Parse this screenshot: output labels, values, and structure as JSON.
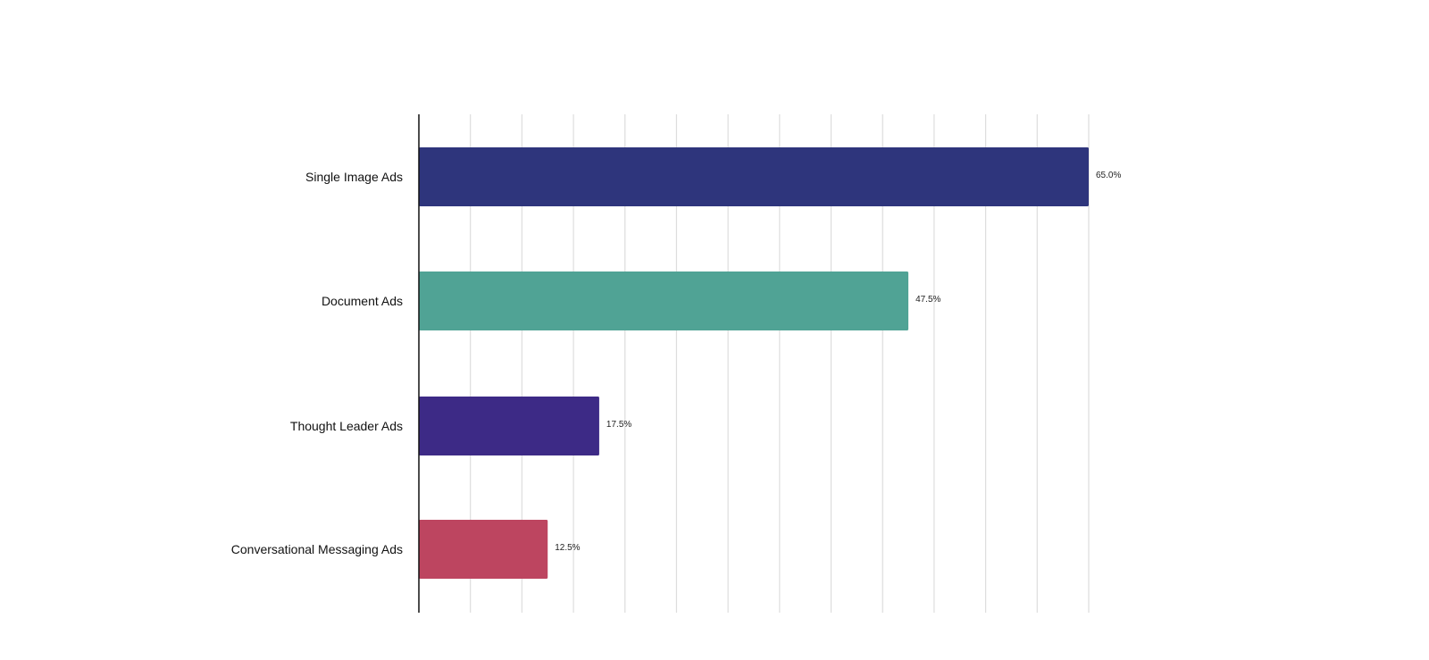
{
  "chart_data": {
    "type": "bar",
    "orientation": "horizontal",
    "categories": [
      "Single Image Ads",
      "Document Ads",
      "Thought Leader Ads",
      "Conversational Messaging Ads"
    ],
    "values": [
      65.0,
      47.5,
      17.5,
      12.5
    ],
    "value_labels": [
      "65.0%",
      "47.5%",
      "17.5%",
      "12.5%"
    ],
    "colors": [
      "#2e357c",
      "#50a395",
      "#3d2a86",
      "#bd4560"
    ],
    "xlim": [
      0,
      65
    ],
    "grid_step": 5,
    "grid": true,
    "title": "",
    "xlabel": "",
    "ylabel": ""
  }
}
